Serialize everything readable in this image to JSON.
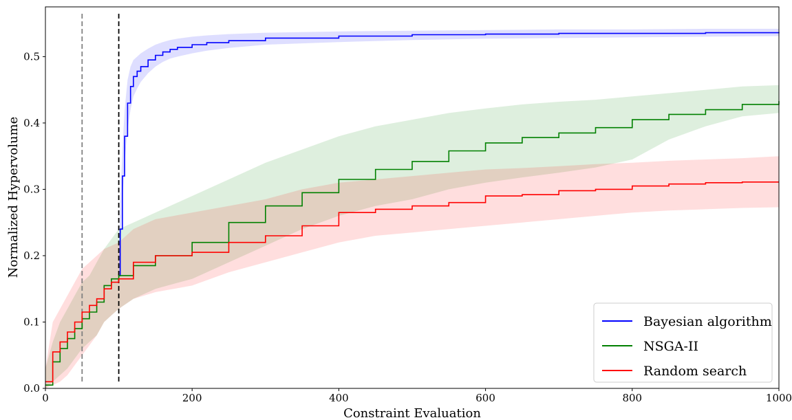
{
  "chart_data": {
    "type": "line",
    "title": "",
    "xlabel": "Constraint Evaluation",
    "ylabel": "Normalized Hypervolume",
    "xlim": [
      0,
      1000
    ],
    "ylim": [
      0,
      0.575
    ],
    "xticks": [
      0,
      200,
      400,
      600,
      800,
      1000
    ],
    "xtick_labels": [
      "0",
      "200",
      "400",
      "600",
      "800",
      "1000"
    ],
    "yticks": [
      0,
      0.1,
      0.2,
      0.3,
      0.4,
      0.5
    ],
    "ytick_labels": [
      "0.0",
      "0.1",
      "0.2",
      "0.3",
      "0.4",
      "0.5"
    ],
    "grid": false,
    "legend_position": "bottom-right",
    "vlines": [
      {
        "x": 50,
        "color": "#808080",
        "style": "dashed"
      },
      {
        "x": 100,
        "color": "#000000",
        "style": "dashed"
      }
    ],
    "series": [
      {
        "name": "Bayesian algorithm",
        "color": "#0000ff",
        "x": [
          100,
          102,
          105,
          108,
          112,
          116,
          120,
          125,
          130,
          140,
          150,
          160,
          170,
          180,
          200,
          220,
          250,
          300,
          400,
          500,
          600,
          700,
          800,
          900,
          1000
        ],
        "y": [
          0.17,
          0.24,
          0.32,
          0.38,
          0.43,
          0.455,
          0.47,
          0.478,
          0.485,
          0.495,
          0.502,
          0.507,
          0.511,
          0.514,
          0.518,
          0.521,
          0.524,
          0.528,
          0.531,
          0.533,
          0.534,
          0.535,
          0.535,
          0.536,
          0.537
        ],
        "lower": [
          0.17,
          0.2,
          0.28,
          0.34,
          0.39,
          0.42,
          0.44,
          0.452,
          0.462,
          0.475,
          0.485,
          0.492,
          0.497,
          0.5,
          0.505,
          0.509,
          0.513,
          0.518,
          0.522,
          0.525,
          0.527,
          0.528,
          0.529,
          0.53,
          0.531
        ],
        "upper": [
          0.19,
          0.28,
          0.36,
          0.42,
          0.465,
          0.485,
          0.495,
          0.5,
          0.505,
          0.512,
          0.518,
          0.522,
          0.525,
          0.527,
          0.53,
          0.532,
          0.534,
          0.536,
          0.538,
          0.539,
          0.54,
          0.541,
          0.541,
          0.542,
          0.542
        ]
      },
      {
        "name": "NSGA-II",
        "color": "#008000",
        "x": [
          0,
          10,
          20,
          30,
          40,
          50,
          60,
          70,
          80,
          90,
          100,
          120,
          150,
          200,
          250,
          300,
          350,
          400,
          450,
          500,
          550,
          600,
          650,
          700,
          750,
          800,
          850,
          900,
          950,
          1000
        ],
        "y": [
          0.005,
          0.04,
          0.06,
          0.075,
          0.09,
          0.105,
          0.115,
          0.13,
          0.155,
          0.165,
          0.17,
          0.185,
          0.2,
          0.22,
          0.25,
          0.275,
          0.295,
          0.315,
          0.33,
          0.342,
          0.358,
          0.37,
          0.378,
          0.385,
          0.393,
          0.405,
          0.413,
          0.42,
          0.428,
          0.433
        ],
        "lower": [
          0.0,
          0.01,
          0.02,
          0.03,
          0.045,
          0.06,
          0.07,
          0.08,
          0.1,
          0.11,
          0.12,
          0.135,
          0.15,
          0.165,
          0.19,
          0.215,
          0.24,
          0.26,
          0.275,
          0.285,
          0.3,
          0.31,
          0.318,
          0.325,
          0.333,
          0.345,
          0.375,
          0.395,
          0.41,
          0.415
        ],
        "upper": [
          0.03,
          0.07,
          0.1,
          0.12,
          0.14,
          0.16,
          0.17,
          0.19,
          0.21,
          0.225,
          0.24,
          0.25,
          0.265,
          0.29,
          0.315,
          0.34,
          0.36,
          0.38,
          0.395,
          0.405,
          0.415,
          0.422,
          0.428,
          0.432,
          0.435,
          0.44,
          0.445,
          0.45,
          0.455,
          0.457
        ]
      },
      {
        "name": "Random search",
        "color": "#ff0000",
        "x": [
          0,
          10,
          20,
          30,
          40,
          50,
          60,
          70,
          80,
          90,
          100,
          120,
          150,
          200,
          250,
          300,
          350,
          400,
          450,
          500,
          550,
          600,
          650,
          700,
          750,
          800,
          850,
          900,
          950,
          1000
        ],
        "y": [
          0.01,
          0.055,
          0.07,
          0.085,
          0.1,
          0.115,
          0.125,
          0.135,
          0.15,
          0.16,
          0.165,
          0.19,
          0.2,
          0.205,
          0.22,
          0.23,
          0.245,
          0.265,
          0.27,
          0.275,
          0.28,
          0.29,
          0.292,
          0.298,
          0.3,
          0.305,
          0.308,
          0.31,
          0.311,
          0.311
        ],
        "lower": [
          0.0,
          0.005,
          0.01,
          0.02,
          0.035,
          0.05,
          0.065,
          0.08,
          0.1,
          0.11,
          0.12,
          0.135,
          0.145,
          0.155,
          0.175,
          0.19,
          0.205,
          0.22,
          0.23,
          0.235,
          0.24,
          0.245,
          0.25,
          0.255,
          0.26,
          0.265,
          0.268,
          0.27,
          0.272,
          0.273
        ],
        "upper": [
          0.03,
          0.1,
          0.12,
          0.14,
          0.16,
          0.18,
          0.19,
          0.2,
          0.21,
          0.215,
          0.22,
          0.24,
          0.255,
          0.265,
          0.275,
          0.285,
          0.3,
          0.31,
          0.315,
          0.32,
          0.325,
          0.33,
          0.332,
          0.335,
          0.338,
          0.34,
          0.343,
          0.345,
          0.347,
          0.35
        ]
      }
    ]
  }
}
